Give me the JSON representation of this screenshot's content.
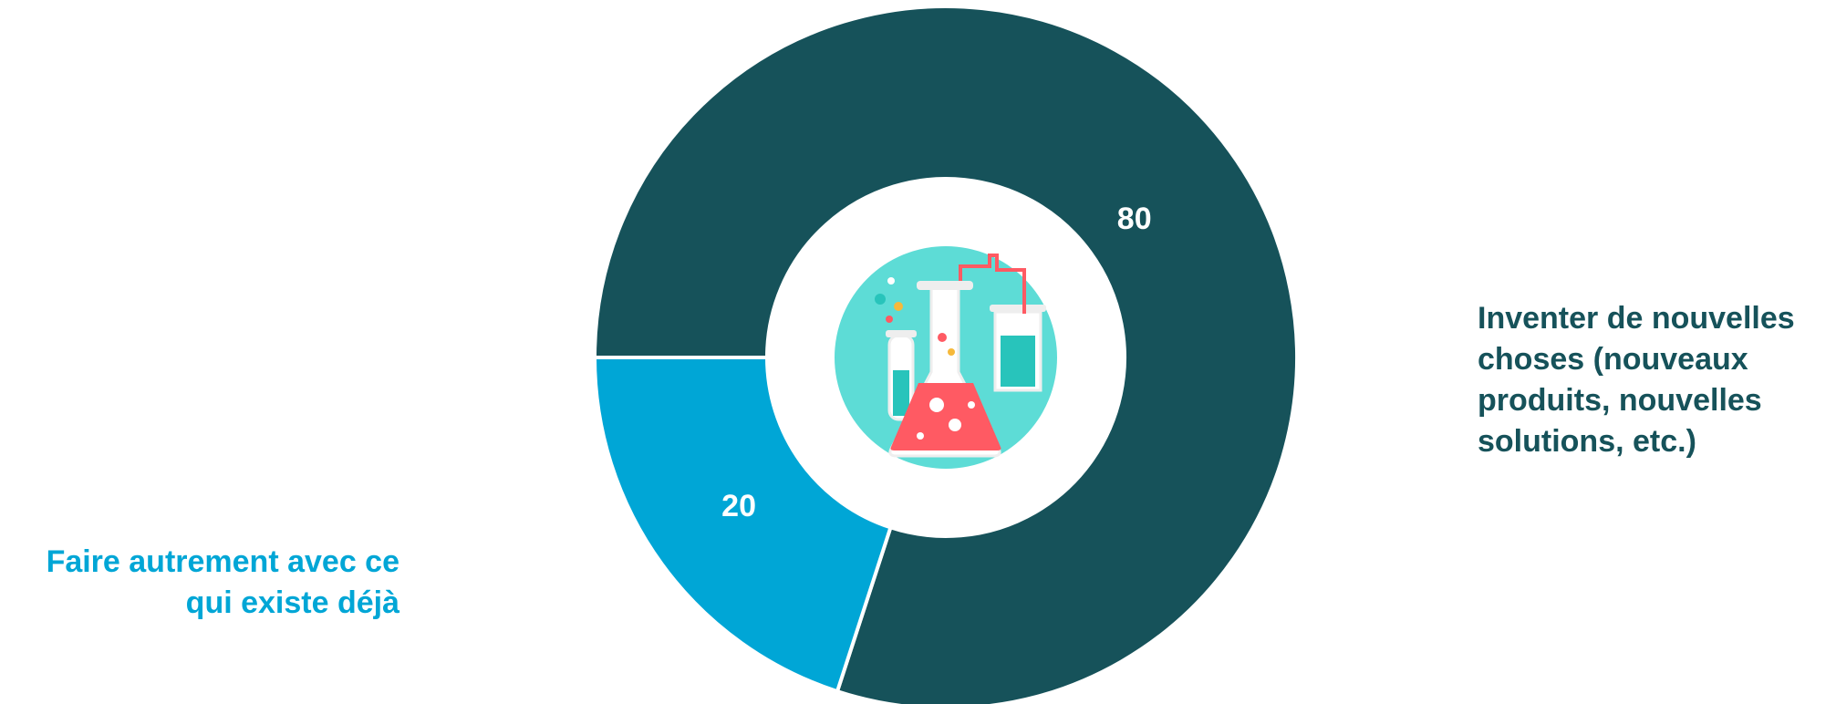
{
  "chart_data": {
    "type": "donut",
    "categories": [
      "Inventer de nouvelles choses (nouveaux produits, nouvelles solutions, etc.)",
      "Faire autrement avec ce qui existe déjà"
    ],
    "values": [
      80,
      20
    ],
    "colors": [
      "#16525a",
      "#00a6d6"
    ]
  }
}
